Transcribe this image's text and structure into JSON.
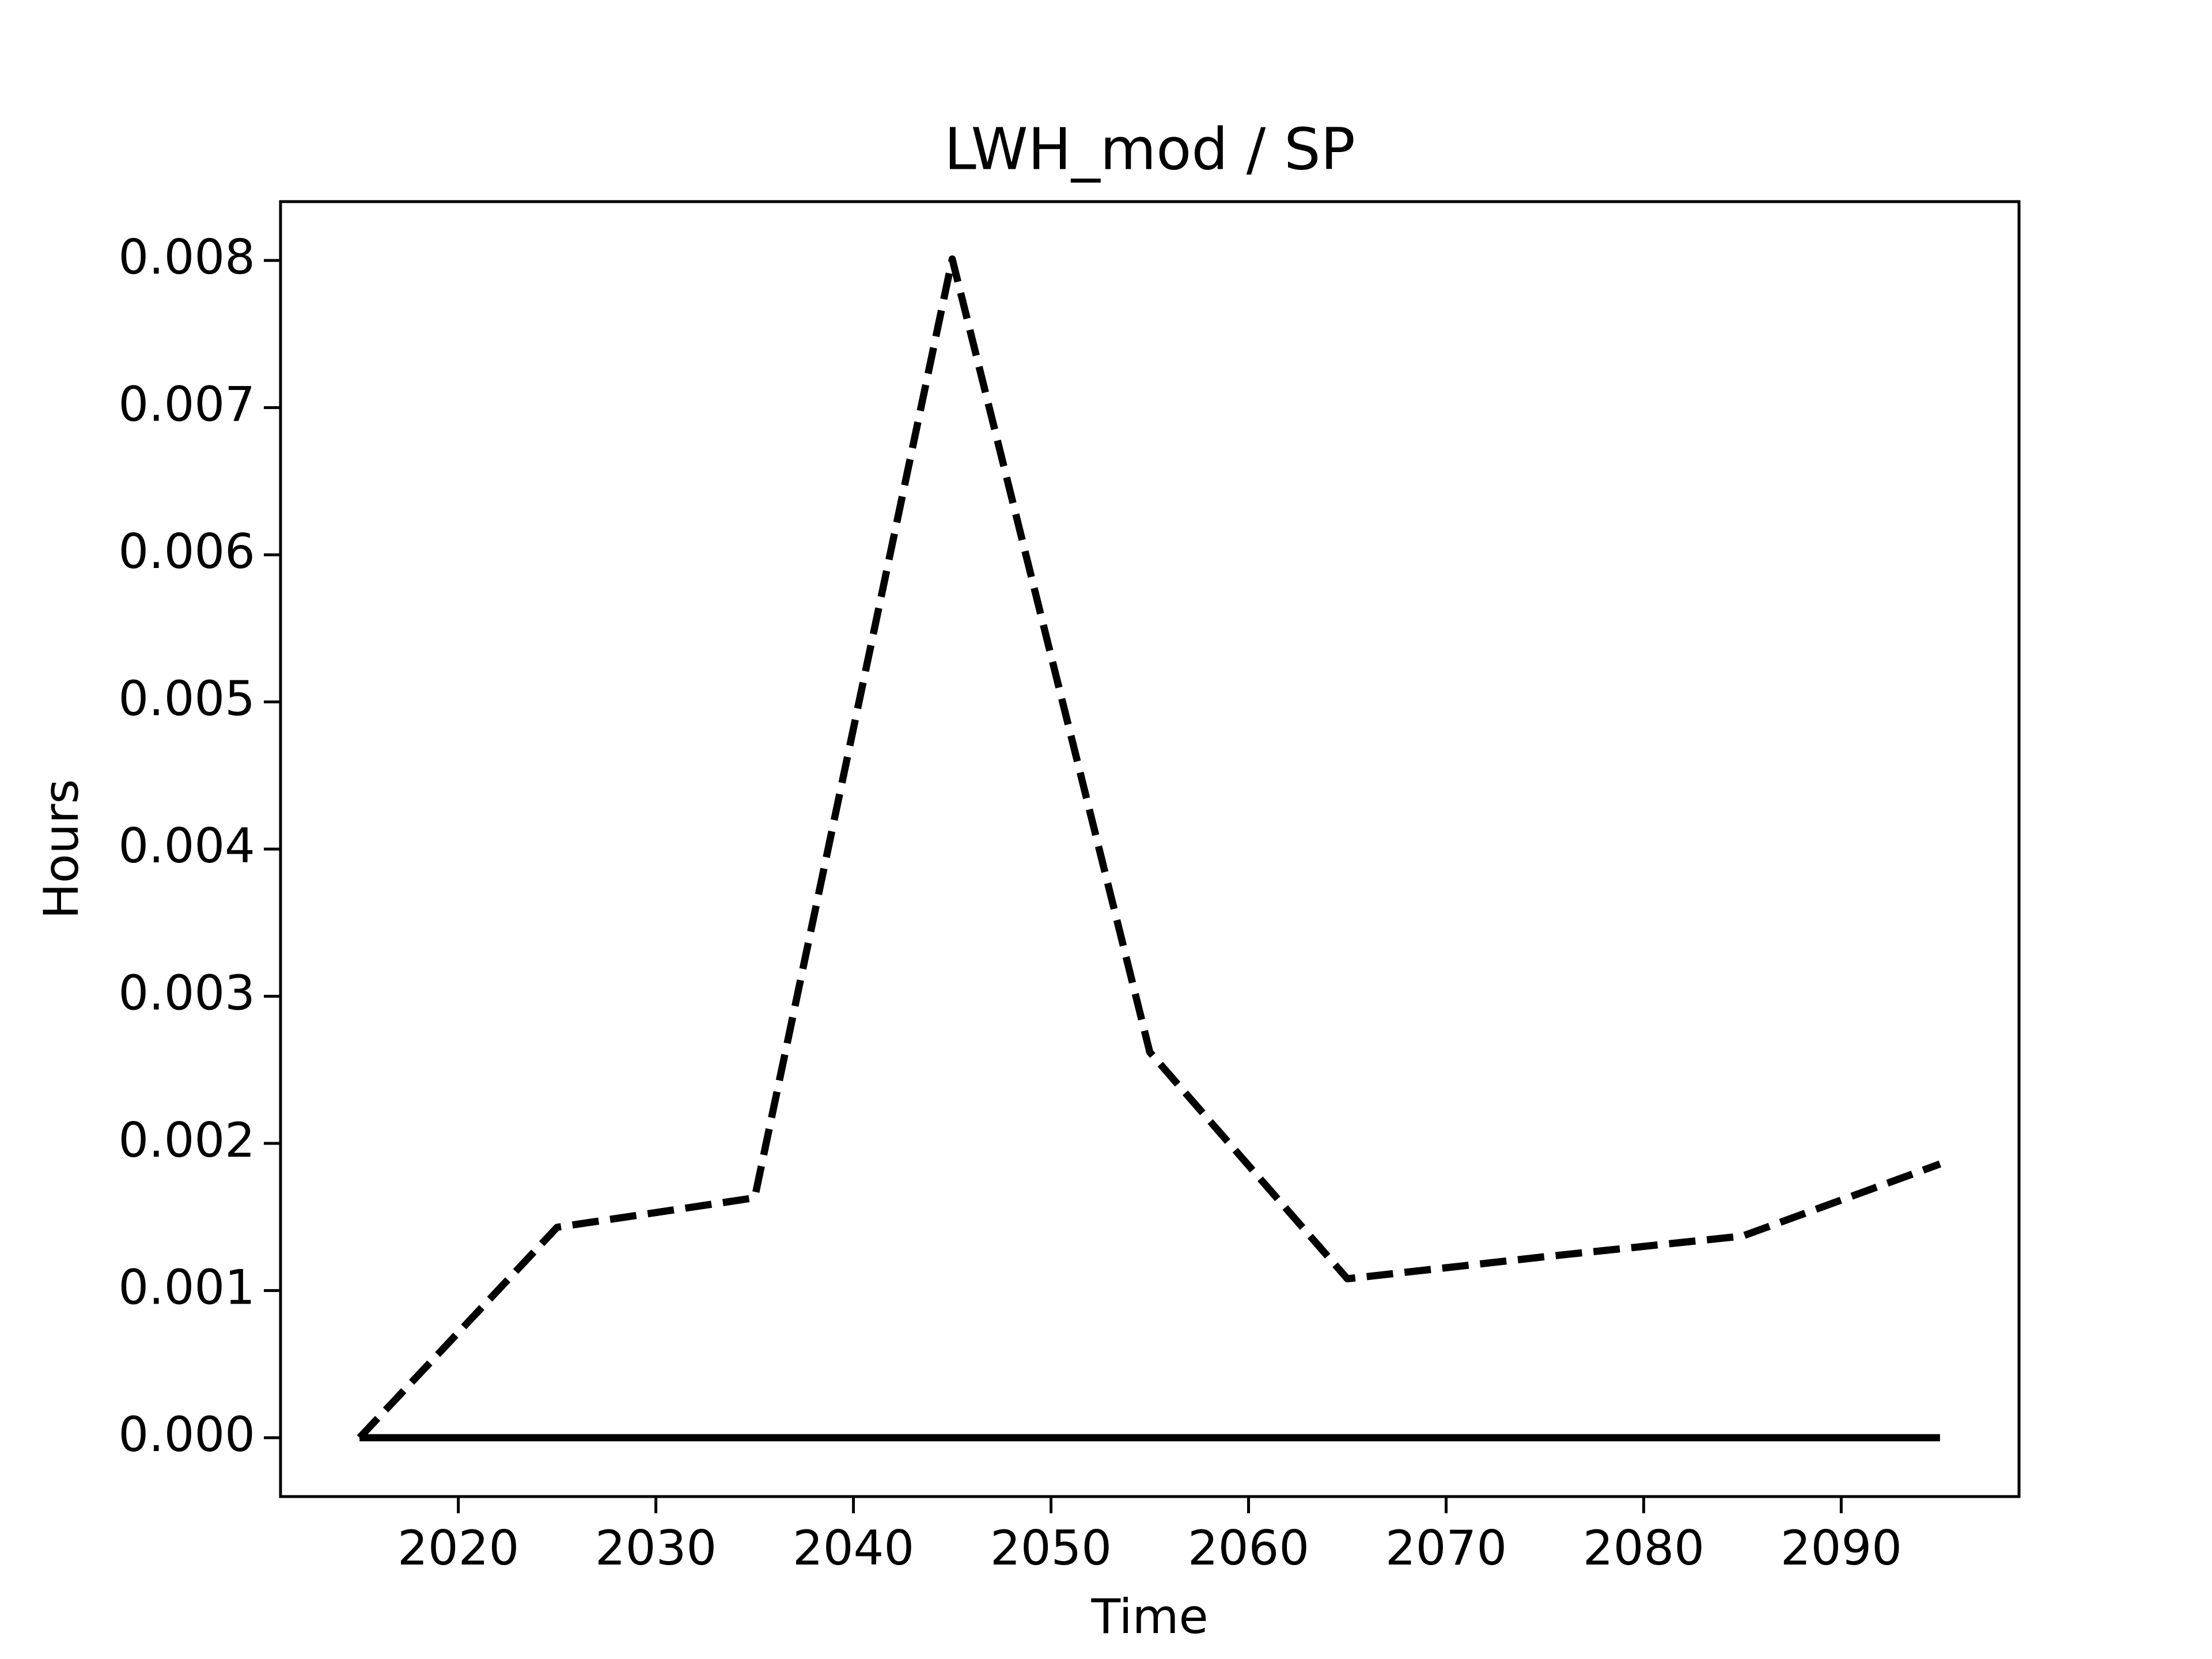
{
  "chart_data": {
    "type": "line",
    "title": "LWH_mod / SP",
    "x_label": "Time",
    "y_label": "Hours",
    "x": [
      2015,
      2025,
      2035,
      2045,
      2055,
      2065,
      2075,
      2085,
      2095
    ],
    "series": [
      {
        "color": "#000000",
        "linestyle": "dashed",
        "values": [
          0,
          0.00143,
          0.00163,
          0.00801,
          0.00262,
          0.00108,
          0.00123,
          0.00137,
          0.00186
        ]
      },
      {
        "color": "#000000",
        "linestyle": "solid",
        "values": [
          0,
          0,
          0,
          0,
          0,
          0,
          0,
          0,
          0
        ]
      }
    ],
    "xlim": [
      2011,
      2099
    ],
    "ylim": [
      -0.0004,
      0.0084
    ],
    "xticks": [
      2020,
      2030,
      2040,
      2050,
      2060,
      2070,
      2080,
      2090
    ],
    "yticks": [
      {
        "value": 0,
        "label": "0.000"
      },
      {
        "value": 0.001,
        "label": "0.001"
      },
      {
        "value": 0.002,
        "label": "0.002"
      },
      {
        "value": 0.003,
        "label": "0.003"
      },
      {
        "value": 0.004,
        "label": "0.004"
      },
      {
        "value": 0.005,
        "label": "0.005"
      },
      {
        "value": 0.006,
        "label": "0.006"
      },
      {
        "value": 0.007,
        "label": "0.007"
      },
      {
        "value": 0.008,
        "label": "0.008"
      }
    ],
    "grid": false
  }
}
